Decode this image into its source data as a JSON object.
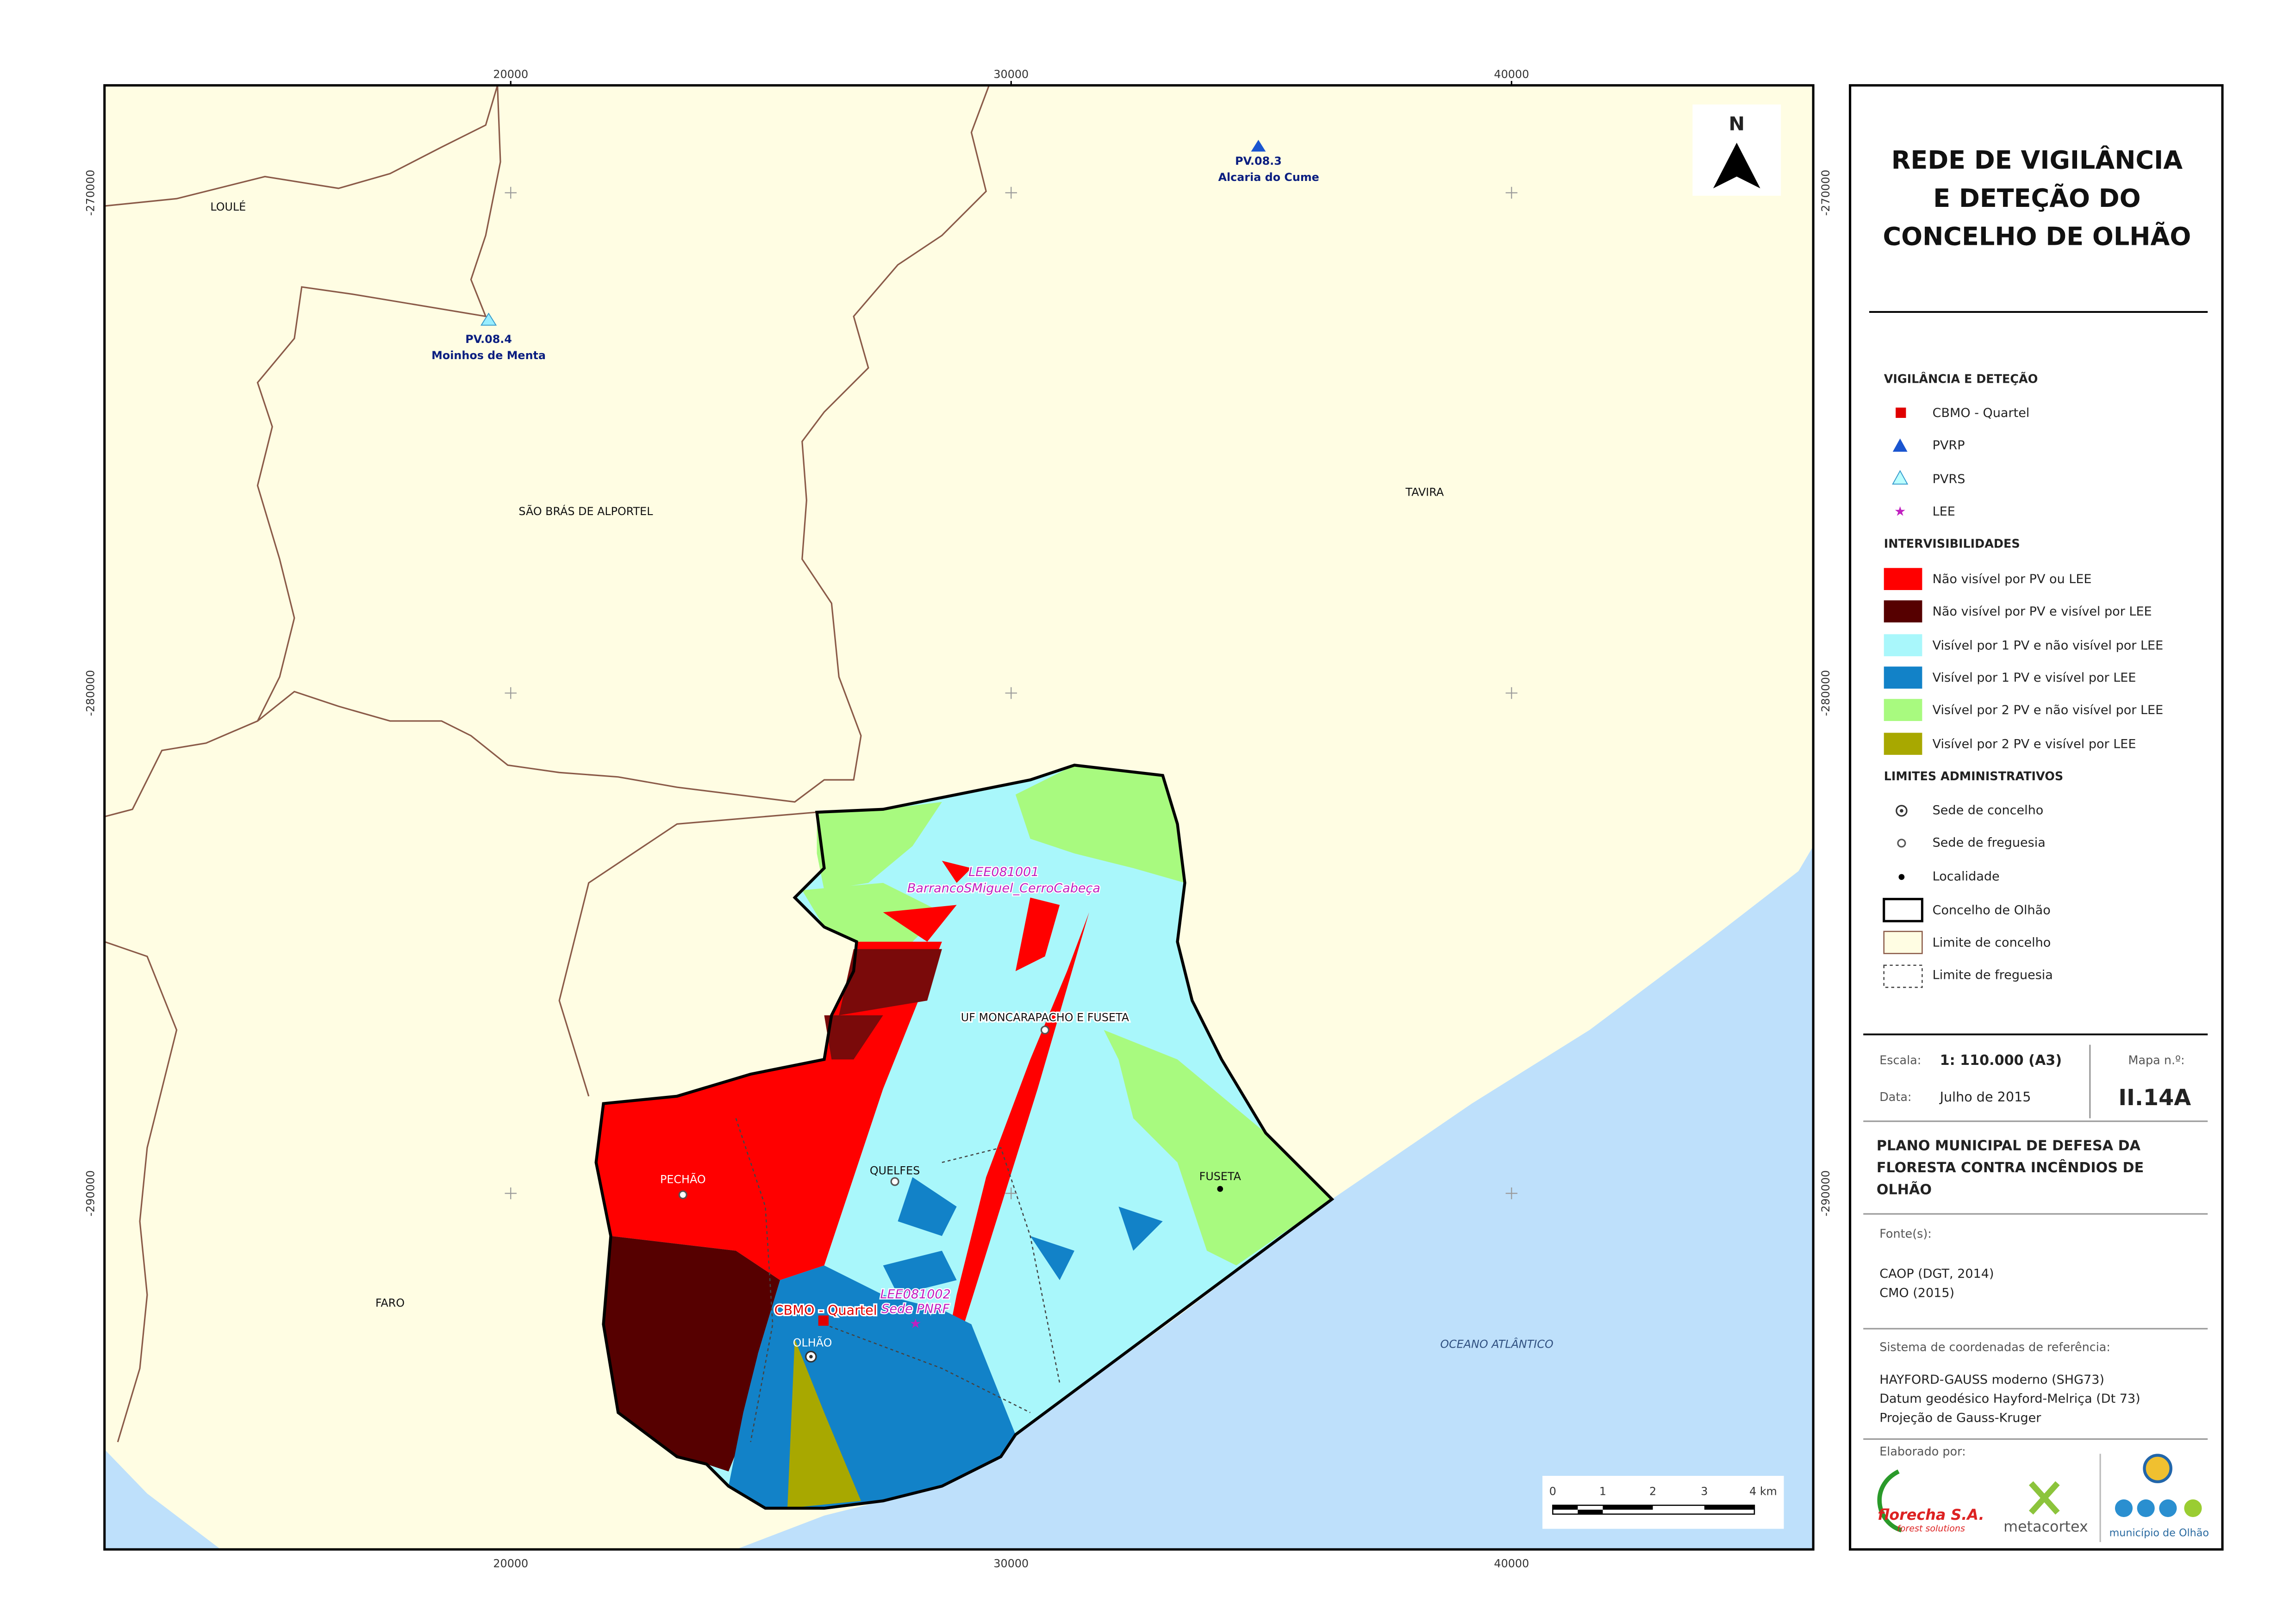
{
  "map": {
    "x_ticks": [
      20000,
      30000,
      40000
    ],
    "y_ticks": [
      -270000,
      -280000,
      -290000
    ],
    "north": "N",
    "places": [
      "LOULÉ",
      "SÃO BRÁS DE ALPORTEL",
      "TAVIRA",
      "FARO",
      "UF MONCARAPACHO E FUSETA",
      "PECHÃO",
      "QUELFES",
      "FUSETA",
      "OLHÃO",
      "OCEANO ATLÂNTICO"
    ],
    "stations": [
      {
        "code": "PV.08.3",
        "name": "Alcaria do Cume"
      },
      {
        "code": "PV.08.4",
        "name": "Moinhos de Menta"
      },
      {
        "code": "LEE081001",
        "name": "BarrancoSMiguel_CerroCabeça"
      },
      {
        "code": "LEE081002",
        "name": "Sede PNRF"
      },
      {
        "code": "CBMO - Quartel"
      }
    ],
    "scale_bar": [
      "0",
      "1",
      "2",
      "3",
      "4 km"
    ]
  },
  "panel": {
    "title": [
      "REDE DE VIGILÂNCIA",
      "E DETEÇÃO DO",
      "CONCELHO DE OLHÃO"
    ],
    "legend": [
      {
        "heading": "VIGILÂNCIA E DETEÇÃO",
        "items": [
          "CBMO - Quartel",
          "PVRP",
          "PVRS",
          "LEE"
        ]
      },
      {
        "heading": "INTERVISIBILIDADES",
        "items": [
          "Não visível por PV ou LEE",
          "Não visível por PV e visível por LEE",
          "Visível por 1 PV e não visível por LEE",
          "Visível por 1 PV e visível por LEE",
          "Visível por 2 PV e não visível por LEE",
          "Visível por 2 PV e visível por LEE"
        ]
      },
      {
        "heading": "LIMITES ADMINISTRATIVOS",
        "items": [
          "Sede de concelho",
          "Sede de freguesia",
          "Localidade",
          "Concelho de Olhão",
          "Limite de concelho",
          "Limite de freguesia"
        ]
      }
    ],
    "info": {
      "scale_label": "Escala:",
      "scale": "1: 110.000 (A3)",
      "date_label": "Data:",
      "date": "Julho de 2015",
      "map_no_label": "Mapa n.º:",
      "map_no": "II.14A",
      "plan": [
        "PLANO MUNICIPAL DE DEFESA DA",
        "FLORESTA CONTRA INCÊNDIOS DE",
        "OLHÃO"
      ],
      "sources_label": "Fonte(s):",
      "sources": [
        "CAOP (DGT, 2014)",
        "CMO (2015)"
      ],
      "crs_label": "Sistema de coordenadas de referência:",
      "crs": [
        "HAYFORD-GAUSS moderno (SHG73)",
        "Datum geodésico Hayford-Melriça (Dt 73)",
        "Projeção de Gauss-Kruger"
      ],
      "made_by": "Elaborado por:",
      "logos": [
        "florecha S.A.",
        "forest solutions",
        "metacortex",
        "município de Olhão"
      ]
    }
  }
}
